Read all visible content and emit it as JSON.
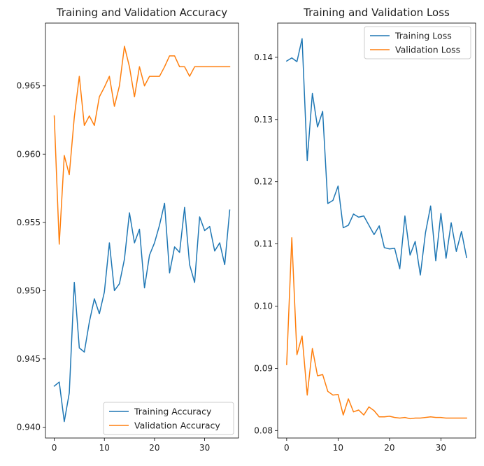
{
  "chart_data": [
    {
      "type": "line",
      "title": "Training and Validation Accuracy",
      "xlabel": "",
      "ylabel": "",
      "xlim": [
        -1.75,
        36.75
      ],
      "ylim": [
        0.9392,
        0.9696
      ],
      "xticks": [
        0,
        10,
        20,
        30
      ],
      "xtick_labels": [
        "0",
        "10",
        "20",
        "30"
      ],
      "yticks": [
        0.94,
        0.945,
        0.95,
        0.955,
        0.96,
        0.965
      ],
      "ytick_labels": [
        "0.940",
        "0.945",
        "0.950",
        "0.955",
        "0.960",
        "0.965"
      ],
      "grid": false,
      "legend": {
        "location": "lower-right",
        "entries": [
          "Training Accuracy",
          "Validation Accuracy"
        ]
      },
      "x": [
        0,
        1,
        2,
        3,
        4,
        5,
        6,
        7,
        8,
        9,
        10,
        11,
        12,
        13,
        14,
        15,
        16,
        17,
        18,
        19,
        20,
        21,
        22,
        23,
        24,
        25,
        26,
        27,
        28,
        29,
        30,
        31,
        32,
        33,
        34,
        35
      ],
      "series": [
        {
          "name": "Training Accuracy",
          "color": "#1f77b4",
          "values": [
            0.943,
            0.9433,
            0.9404,
            0.9425,
            0.9506,
            0.9458,
            0.9455,
            0.9477,
            0.9494,
            0.9483,
            0.9499,
            0.9535,
            0.95,
            0.9505,
            0.9523,
            0.9557,
            0.9535,
            0.9545,
            0.9502,
            0.9526,
            0.9535,
            0.9548,
            0.9564,
            0.9513,
            0.9532,
            0.9528,
            0.9561,
            0.9519,
            0.9506,
            0.9554,
            0.9544,
            0.9547,
            0.9529,
            0.9535,
            0.9519,
            0.9559
          ]
        },
        {
          "name": "Validation Accuracy",
          "color": "#ff7f0e",
          "values": [
            0.9628,
            0.9534,
            0.9599,
            0.9585,
            0.9627,
            0.9657,
            0.9621,
            0.9628,
            0.9621,
            0.9642,
            0.9649,
            0.9657,
            0.9635,
            0.965,
            0.9679,
            0.9664,
            0.9642,
            0.9664,
            0.965,
            0.9657,
            0.9657,
            0.9657,
            0.9664,
            0.9672,
            0.9672,
            0.9664,
            0.9664,
            0.9657,
            0.9664,
            0.9664,
            0.9664,
            0.9664,
            0.9664,
            0.9664,
            0.9664,
            0.9664
          ]
        }
      ]
    },
    {
      "type": "line",
      "title": "Training and Validation Loss",
      "xlabel": "",
      "ylabel": "",
      "xlim": [
        -1.75,
        36.75
      ],
      "ylim": [
        0.0788,
        0.1455
      ],
      "xticks": [
        0,
        10,
        20,
        30
      ],
      "xtick_labels": [
        "0",
        "10",
        "20",
        "30"
      ],
      "yticks": [
        0.08,
        0.09,
        0.1,
        0.11,
        0.12,
        0.13,
        0.14
      ],
      "ytick_labels": [
        "0.08",
        "0.09",
        "0.10",
        "0.11",
        "0.12",
        "0.13",
        "0.14"
      ],
      "grid": false,
      "legend": {
        "location": "top-right",
        "entries": [
          "Training Loss",
          "Validation Loss"
        ]
      },
      "x": [
        0,
        1,
        2,
        3,
        4,
        5,
        6,
        7,
        8,
        9,
        10,
        11,
        12,
        13,
        14,
        15,
        16,
        17,
        18,
        19,
        20,
        21,
        22,
        23,
        24,
        25,
        26,
        27,
        28,
        29,
        30,
        31,
        32,
        33,
        34,
        35
      ],
      "series": [
        {
          "name": "Training Loss",
          "color": "#1f77b4",
          "values": [
            0.1394,
            0.1399,
            0.1393,
            0.143,
            0.1234,
            0.1342,
            0.1288,
            0.1313,
            0.1165,
            0.117,
            0.1193,
            0.1126,
            0.113,
            0.1148,
            0.1143,
            0.1145,
            0.113,
            0.1115,
            0.1129,
            0.1094,
            0.1092,
            0.1093,
            0.106,
            0.1145,
            0.1082,
            0.1104,
            0.105,
            0.1118,
            0.1161,
            0.1073,
            0.1149,
            0.1077,
            0.1134,
            0.1088,
            0.112,
            0.1078
          ]
        },
        {
          "name": "Validation Loss",
          "color": "#ff7f0e",
          "values": [
            0.0906,
            0.111,
            0.0922,
            0.0952,
            0.0857,
            0.0932,
            0.0888,
            0.089,
            0.0863,
            0.0857,
            0.0858,
            0.0825,
            0.0851,
            0.083,
            0.0833,
            0.0825,
            0.0838,
            0.0832,
            0.0822,
            0.0822,
            0.0823,
            0.0821,
            0.082,
            0.0821,
            0.0819,
            0.082,
            0.082,
            0.0821,
            0.0822,
            0.0821,
            0.0821,
            0.082,
            0.082,
            0.082,
            0.082,
            0.082
          ]
        }
      ]
    }
  ]
}
